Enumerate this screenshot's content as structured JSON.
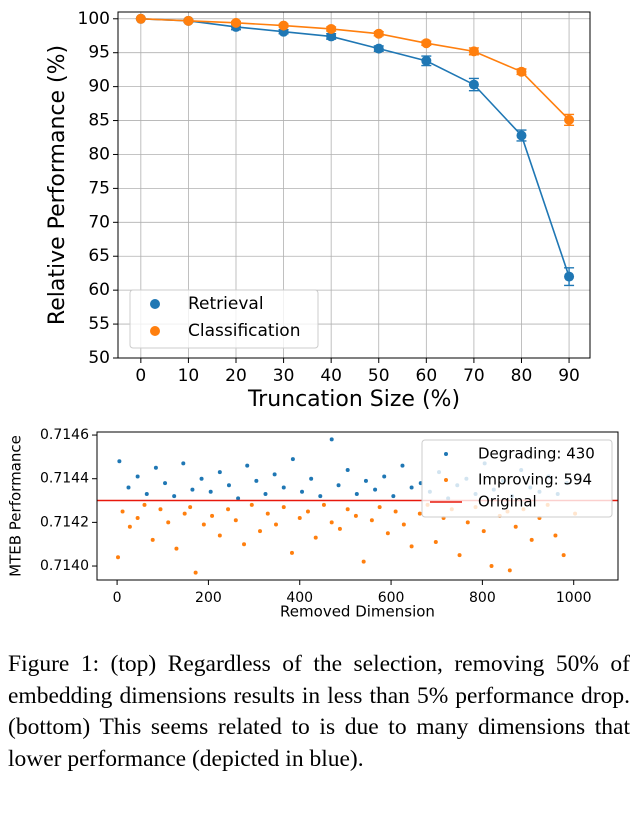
{
  "chart_data": [
    {
      "type": "line",
      "xlabel": "Truncation Size (%)",
      "ylabel": "Relative Performance (%)",
      "x": [
        0,
        10,
        20,
        30,
        40,
        50,
        60,
        70,
        80,
        90
      ],
      "series": [
        {
          "name": "Retrieval",
          "color": "#1f77b4",
          "values": [
            100,
            99.7,
            98.8,
            98.1,
            97.4,
            95.6,
            93.8,
            90.3,
            82.8,
            62.0
          ],
          "errors": [
            0,
            0.2,
            0.4,
            0.3,
            0.4,
            0.4,
            0.7,
            0.9,
            0.8,
            1.3
          ]
        },
        {
          "name": "Classification",
          "color": "#ff7f0e",
          "values": [
            100,
            99.7,
            99.4,
            99.0,
            98.5,
            97.8,
            96.4,
            95.2,
            92.2,
            85.1
          ],
          "errors": [
            0,
            0.1,
            0.2,
            0.2,
            0.3,
            0.3,
            0.3,
            0.5,
            0.4,
            0.8
          ]
        }
      ],
      "xlim": [
        -4.8,
        94.4
      ],
      "xticks": [
        0,
        10,
        20,
        30,
        40,
        50,
        60,
        70,
        80,
        90
      ],
      "ylim": [
        50,
        101
      ],
      "yticks": [
        50,
        55,
        60,
        65,
        70,
        75,
        80,
        85,
        90,
        95,
        100
      ],
      "grid": true,
      "legend": "lower left"
    },
    {
      "type": "scatter",
      "xlabel": "Removed Dimension",
      "ylabel": "MTEB Performance",
      "series": [
        {
          "name": "Degrading: 430",
          "color": "#1f77b4",
          "x": [
            5,
            25,
            45,
            65,
            85,
            105,
            125,
            145,
            165,
            185,
            205,
            225,
            245,
            265,
            285,
            305,
            325,
            345,
            365,
            385,
            405,
            425,
            445,
            470,
            485,
            505,
            525,
            545,
            565,
            585,
            605,
            625,
            645,
            665,
            685,
            705,
            725,
            745,
            765,
            785,
            805,
            825,
            845,
            865,
            885,
            905,
            925,
            945,
            965,
            985
          ],
          "values": [
            0.71448,
            0.71436,
            0.71441,
            0.71433,
            0.71445,
            0.71438,
            0.71432,
            0.71447,
            0.71435,
            0.7144,
            0.71434,
            0.71443,
            0.71437,
            0.71431,
            0.71446,
            0.71439,
            0.71433,
            0.71442,
            0.71436,
            0.71449,
            0.71434,
            0.7144,
            0.71432,
            0.71458,
            0.71437,
            0.71444,
            0.71433,
            0.71439,
            0.71435,
            0.71441,
            0.71432,
            0.71446,
            0.71436,
            0.71438,
            0.71434,
            0.71443,
            0.71431,
            0.71437,
            0.7144,
            0.71433,
            0.71447,
            0.71435,
            0.71439,
            0.71432,
            0.71444,
            0.71436,
            0.71434,
            0.71441,
            0.71433,
            0.71438
          ]
        },
        {
          "name": "Improving: 594",
          "color": "#ff7f0e",
          "x": [
            2,
            12,
            28,
            45,
            60,
            78,
            95,
            112,
            130,
            148,
            160,
            172,
            190,
            208,
            225,
            243,
            260,
            278,
            295,
            313,
            330,
            348,
            365,
            383,
            400,
            418,
            435,
            453,
            470,
            488,
            505,
            523,
            540,
            558,
            575,
            593,
            610,
            628,
            645,
            663,
            680,
            698,
            715,
            733,
            750,
            768,
            785,
            803,
            820,
            838,
            855,
            860,
            873,
            890,
            908,
            925,
            943,
            960,
            978,
            1003
          ],
          "values": [
            0.71404,
            0.71425,
            0.71418,
            0.71422,
            0.71428,
            0.71412,
            0.71426,
            0.7142,
            0.71408,
            0.71424,
            0.71427,
            0.71397,
            0.71419,
            0.71423,
            0.71414,
            0.71426,
            0.71421,
            0.7141,
            0.71428,
            0.71416,
            0.71424,
            0.71419,
            0.71427,
            0.71406,
            0.71422,
            0.71425,
            0.71413,
            0.71428,
            0.7142,
            0.71417,
            0.71426,
            0.71423,
            0.71402,
            0.71421,
            0.71427,
            0.71415,
            0.71425,
            0.71419,
            0.71409,
            0.71424,
            0.71428,
            0.71411,
            0.71422,
            0.71426,
            0.71405,
            0.7142,
            0.71427,
            0.71416,
            0.714,
            0.71423,
            0.71425,
            0.71398,
            0.71418,
            0.71426,
            0.71412,
            0.71422,
            0.71428,
            0.71414,
            0.71405,
            0.71424
          ]
        }
      ],
      "reference_line": {
        "name": "Original",
        "value": 0.7143,
        "color": "#e8180c"
      },
      "xlim": [
        -44,
        1097
      ],
      "xticks": [
        0,
        200,
        400,
        600,
        800,
        1000
      ],
      "ylim": [
        0.713936,
        0.714614
      ],
      "yticks": [
        {
          "value": 0.714,
          "label": "0.7140"
        },
        0.7142,
        0.7144,
        0.7146
      ],
      "grid": false,
      "legend": "upper right"
    }
  ],
  "caption": "Figure 1: (top) Regardless of the selection, removing 50% of embedding dimensions results in less than 5% performance drop. (bottom) This seems related to is due to many dimensions that lower performance (depicted in blue)."
}
